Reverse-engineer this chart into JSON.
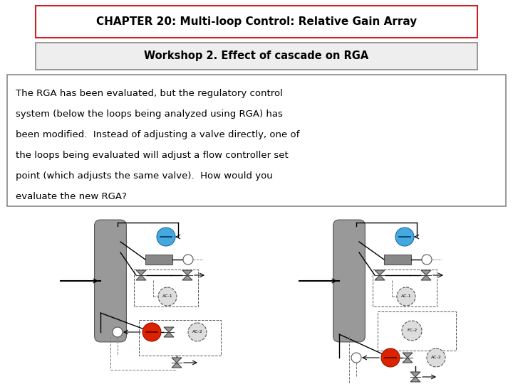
{
  "title": "CHAPTER 20: Multi-loop Control: Relative Gain Array",
  "subtitle": "Workshop 2. Effect of cascade on RGA",
  "body_lines": [
    "The RGA has been evaluated, but the regulatory control",
    "system (below the loops being analyzed using RGA) has",
    "been modified.  Instead of adjusting a valve directly, one of",
    "the loops being evaluated will adjust a flow controller set",
    "point (which adjusts the same valve).  How would you",
    "evaluate the new RGA?"
  ],
  "bg_color": "#ffffff",
  "title_box_border": "#cc2222",
  "subtitle_box_border": "#888888",
  "body_box_border": "#888888",
  "title_fontsize": 11,
  "subtitle_fontsize": 10.5,
  "body_fontsize": 9.5
}
